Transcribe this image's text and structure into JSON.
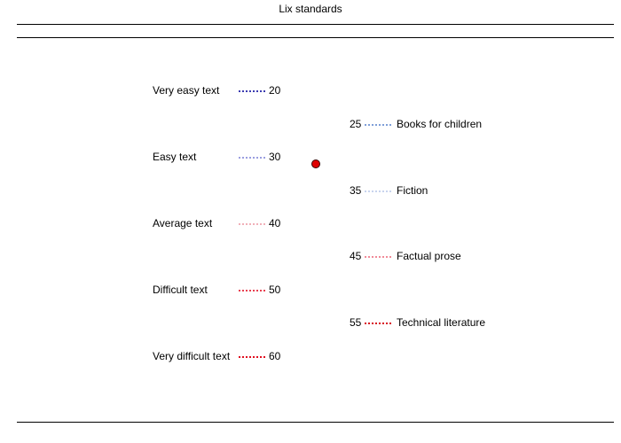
{
  "window": {
    "title": "Lix standards"
  },
  "difficulty_levels": [
    {
      "label": "Very easy text",
      "value": "20",
      "color": "#3b3bb0"
    },
    {
      "label": "Easy text",
      "value": "30",
      "color": "#9a9ee0"
    },
    {
      "label": "Average text",
      "value": "40",
      "color": "#f0b0b8"
    },
    {
      "label": "Difficult text",
      "value": "50",
      "color": "#e84050"
    },
    {
      "label": "Very difficult text",
      "value": "60",
      "color": "#e01020"
    }
  ],
  "text_types": [
    {
      "value": "25",
      "label": "Books for children",
      "color": "#7f9fd8"
    },
    {
      "value": "35",
      "label": "Fiction",
      "color": "#c8d4ee"
    },
    {
      "value": "45",
      "label": "Factual prose",
      "color": "#f08a98"
    },
    {
      "value": "55",
      "label": "Technical literature",
      "color": "#d81020"
    }
  ],
  "marker": {
    "color": "#e00000"
  }
}
